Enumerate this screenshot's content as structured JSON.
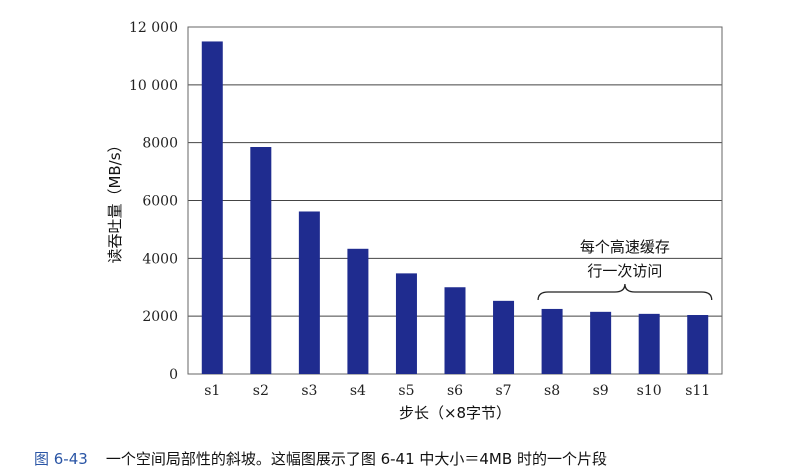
{
  "chart_data": {
    "type": "bar",
    "categories": [
      "s1",
      "s2",
      "s3",
      "s4",
      "s5",
      "s6",
      "s7",
      "s8",
      "s9",
      "s10",
      "s11"
    ],
    "values": [
      11500,
      7850,
      5620,
      4330,
      3480,
      3000,
      2530,
      2250,
      2150,
      2080,
      2040
    ],
    "xlabel": "步长（×8字节）",
    "ylabel": "读吞吐量（MB/s）",
    "ylim": [
      0,
      12000
    ],
    "yticks": [
      0,
      2000,
      4000,
      6000,
      8000,
      10000,
      12000
    ],
    "ytick_labels": [
      "0",
      "2000",
      "4000",
      "6000",
      "8000",
      "10 000",
      "12 000"
    ],
    "grid": true,
    "bar_color": "#1f2c8f",
    "annotation": {
      "lines": [
        "每个高速缓存",
        "行一次访问"
      ],
      "span": [
        "s8",
        "s11"
      ]
    }
  },
  "caption": {
    "number": "图 6-43",
    "text": "一个空间局部性的斜坡。这幅图展示了图 6-41 中大小＝4MB 时的一个片段"
  }
}
